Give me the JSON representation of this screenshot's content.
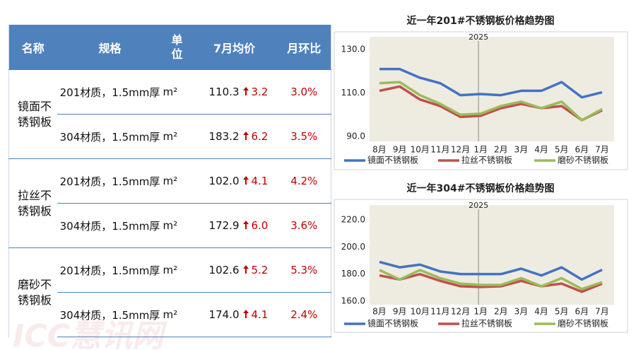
{
  "watermark": "ICC慧讯网",
  "table": {
    "header": [
      "名称",
      "规格",
      "单位",
      "7月均价",
      "月环比"
    ],
    "groups": [
      {
        "name": "镜面不锈钢板",
        "rows": [
          {
            "spec": "201材质，1.5mm厚",
            "unit": "m²",
            "price": "110.3",
            "change": "3.2",
            "ratio": "3.0%"
          },
          {
            "spec": "304材质，1.5mm厚",
            "unit": "m²",
            "price": "183.2",
            "change": "6.2",
            "ratio": "3.5%"
          }
        ]
      },
      {
        "name": "拉丝不锈钢板",
        "rows": [
          {
            "spec": "201材质，1.5mm厚",
            "unit": "m²",
            "price": "102.0",
            "change": "4.1",
            "ratio": "4.2%"
          },
          {
            "spec": "304材质，1.5mm厚",
            "unit": "m²",
            "price": "172.9",
            "change": "6.0",
            "ratio": "3.6%"
          }
        ]
      },
      {
        "name": "磨砂不锈钢板",
        "rows": [
          {
            "spec": "201材质，1.5mm厚",
            "unit": "m²",
            "price": "102.6",
            "change": "5.2",
            "ratio": "5.3%"
          },
          {
            "spec": "304材质，1.5mm厚",
            "unit": "m²",
            "price": "174.0",
            "change": "4.1",
            "ratio": "2.4%"
          }
        ]
      }
    ]
  },
  "chart_data": [
    {
      "type": "line",
      "title": "近一年201#不锈钢板价格趋势图",
      "annotation": {
        "text": "2025",
        "category": "1月"
      },
      "categories": [
        "8月",
        "9月",
        "10月",
        "11月",
        "12月",
        "1月",
        "2月",
        "3月",
        "4月",
        "5月",
        "6月",
        "7月"
      ],
      "ylim": [
        90,
        130
      ],
      "yticks": [
        {
          "value": 90,
          "label": "90.0"
        },
        {
          "value": 110,
          "label": "110.0"
        },
        {
          "value": 130,
          "label": "130.0"
        }
      ],
      "series": [
        {
          "name": "镜面不锈钢板",
          "color": "#4472c4",
          "values": [
            121,
            121,
            117,
            114.5,
            109,
            109.5,
            109,
            111,
            111,
            115,
            108,
            110.3
          ]
        },
        {
          "name": "拉丝不锈钢板",
          "color": "#c0504d",
          "values": [
            111,
            113,
            107,
            104,
            99,
            99.5,
            103,
            105,
            103,
            104,
            97.5,
            102
          ]
        },
        {
          "name": "磨砂不锈钢板",
          "color": "#9bbb59",
          "values": [
            114.5,
            115,
            109,
            105,
            100,
            100.5,
            104,
            106,
            103,
            106,
            97.5,
            102.6
          ]
        }
      ]
    },
    {
      "type": "line",
      "title": "近一年304#不锈钢板价格趋势图",
      "annotation": {
        "text": "2025",
        "category": "1月"
      },
      "categories": [
        "8月",
        "9月",
        "10月",
        "11月",
        "12月",
        "1月",
        "2月",
        "3月",
        "4月",
        "5月",
        "6月",
        "7月"
      ],
      "ylim": [
        160,
        220
      ],
      "yticks": [
        {
          "value": 160,
          "label": "160.0"
        },
        {
          "value": 180,
          "label": "180.0"
        },
        {
          "value": 200,
          "label": "200.0"
        },
        {
          "value": 220,
          "label": "220.0"
        }
      ],
      "series": [
        {
          "name": "镜面不锈钢板",
          "color": "#4472c4",
          "values": [
            189,
            185,
            187,
            182,
            180,
            180,
            180,
            184,
            179,
            185,
            176,
            183.2
          ]
        },
        {
          "name": "拉丝不锈钢板",
          "color": "#c0504d",
          "values": [
            179,
            176,
            180,
            175,
            171,
            170.5,
            171,
            175,
            171,
            173,
            167,
            172.9
          ]
        },
        {
          "name": "磨砂不锈钢板",
          "color": "#9bbb59",
          "values": [
            183,
            176,
            183,
            177,
            173,
            172,
            172,
            177,
            171,
            177,
            169,
            174
          ]
        }
      ]
    }
  ]
}
